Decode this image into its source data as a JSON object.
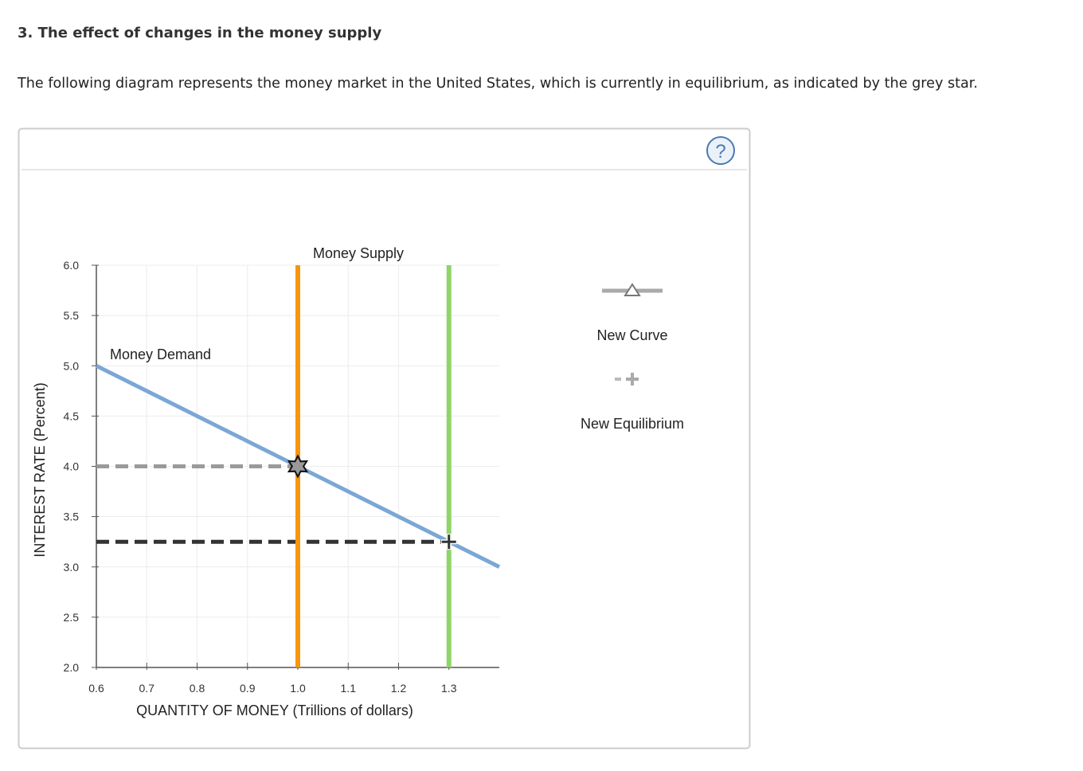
{
  "header": {
    "title": "3. The effect of changes in the money supply",
    "intro": "The following diagram represents the money market in the United States, which is currently in equilibrium, as indicated by the grey star."
  },
  "chart_data": {
    "type": "line",
    "x_label": "QUANTITY OF MONEY (Trillions of dollars)",
    "y_label": "INTEREST RATE (Percent)",
    "xlim": [
      0.6,
      1.4
    ],
    "ylim": [
      2,
      6
    ],
    "xticks": [
      0.6,
      0.7,
      0.8,
      0.9,
      {
        "value": 1,
        "label": "1.0"
      },
      1.1,
      1.2,
      1.3
    ],
    "yticks": [
      {
        "value": 2,
        "label": "2.0"
      },
      2.5,
      {
        "value": 3,
        "label": "3.0"
      },
      3.5,
      {
        "value": 4,
        "label": "4.0"
      },
      4.5,
      {
        "value": 5,
        "label": "5.0"
      },
      5.5,
      {
        "value": 6,
        "label": "6.0"
      }
    ],
    "grid": true,
    "series": [
      {
        "name": "Money Demand",
        "color": "#7ba7d4",
        "x": [
          0.6,
          1.4
        ],
        "values": [
          5,
          3
        ]
      },
      {
        "name": "Money Supply",
        "color": "#f7960f",
        "x": [
          1,
          1
        ],
        "values": [
          2,
          6
        ]
      },
      {
        "color": "#8fd46a",
        "x": [
          1.3,
          1.3
        ],
        "values": [
          2,
          6
        ]
      },
      {
        "color": "#9a9a9a",
        "dash": true,
        "x": [
          0.6,
          1
        ],
        "values": [
          4,
          4
        ]
      },
      {
        "color": "#333333",
        "dash": true,
        "x": [
          0.6,
          1.3
        ],
        "values": [
          3.25,
          3.25
        ]
      }
    ],
    "points": [
      {
        "marker": "star",
        "color": "#999999",
        "x": 1,
        "y": 4
      },
      {
        "marker": "plus",
        "color": "#333333",
        "x": 1.3,
        "y": 3.25
      }
    ],
    "legend": [
      "New Curve",
      "New Equilibrium"
    ]
  }
}
